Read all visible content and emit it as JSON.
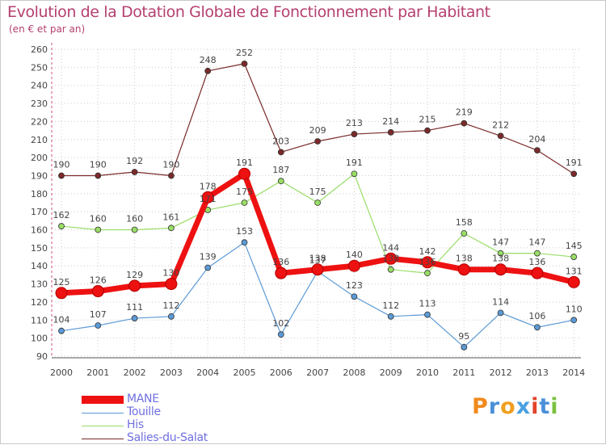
{
  "header": {
    "title": "Evolution de la Dotation Globale de Fonctionnement par Habitant",
    "subtitle": "(en € et par an)"
  },
  "logo": {
    "text": "Proxiti"
  },
  "colors": {
    "title": "#b5406f",
    "axis": "#d05070",
    "grid": "#cccccc",
    "legend_text": "#6f6fe0"
  },
  "chart_data": {
    "type": "line",
    "title": "Evolution de la Dotation Globale de Fonctionnement par Habitant",
    "subtitle": "(en € et par an)",
    "xlabel": "",
    "ylabel": "",
    "x": [
      "2000",
      "2001",
      "2002",
      "2003",
      "2004",
      "2005",
      "2006",
      "2007",
      "2008",
      "2009",
      "2010",
      "2011",
      "2012",
      "2013",
      "2014"
    ],
    "ylim": [
      90,
      260
    ],
    "yticks": [
      90,
      100,
      110,
      120,
      130,
      140,
      150,
      160,
      170,
      180,
      190,
      200,
      210,
      220,
      230,
      240,
      250,
      260
    ],
    "grid": true,
    "legend_position": "bottom-left",
    "series": [
      {
        "name": "Salies-du-Salat",
        "color": "#7a2a2a",
        "values": [
          190,
          190,
          192,
          190,
          248,
          252,
          203,
          209,
          213,
          214,
          215,
          219,
          212,
          204,
          191
        ],
        "labels": [
          "190",
          "190",
          "192",
          "190",
          "248",
          "252",
          "203",
          "209",
          "213",
          "214",
          "215",
          "219",
          "212",
          "204",
          "191"
        ]
      },
      {
        "name": "His",
        "color": "#99dd66",
        "values": [
          162,
          160,
          160,
          161,
          171,
          175,
          187,
          175,
          191,
          138,
          136,
          158,
          147,
          147,
          145
        ],
        "labels": [
          "162",
          "160",
          "160",
          "161",
          "171",
          "175",
          "187",
          "175",
          "191",
          "138",
          "136",
          "158",
          "147",
          "147",
          "145"
        ]
      },
      {
        "name": "Touille",
        "color": "#5c9ad6",
        "values": [
          104,
          107,
          111,
          112,
          139,
          153,
          102,
          137,
          123,
          112,
          113,
          95,
          114,
          106,
          110
        ],
        "labels": [
          "104",
          "107",
          "111",
          "112",
          "139",
          "153",
          "102",
          "137",
          "123",
          "112",
          "113",
          "95",
          "114",
          "106",
          "110"
        ]
      },
      {
        "name": "MANE",
        "color": "#ee1111",
        "values": [
          125,
          126,
          129,
          130,
          178,
          191,
          136,
          138,
          140,
          144,
          142,
          138,
          138,
          136,
          131
        ],
        "labels": [
          "125",
          "126",
          "129",
          "130",
          "178",
          "191",
          "136",
          "138",
          "140",
          "144",
          "142",
          "138",
          "138",
          "136",
          "131"
        ]
      }
    ],
    "legend": [
      {
        "name": "MANE",
        "color": "#ee1111"
      },
      {
        "name": "Touille",
        "color": "#5c9ad6"
      },
      {
        "name": "His",
        "color": "#99dd66"
      },
      {
        "name": "Salies-du-Salat",
        "color": "#7a2a2a"
      }
    ]
  }
}
